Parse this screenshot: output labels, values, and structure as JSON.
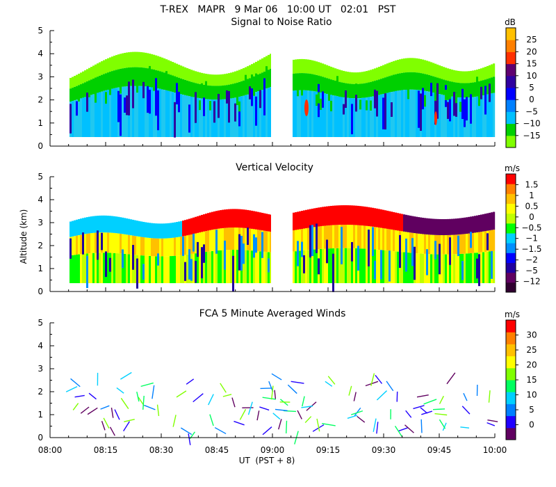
{
  "header": {
    "title": "T-REX   MAPR   9 Mar 06   10:00 UT   02:01   PST"
  },
  "colors": {
    "snr": [
      "#80ff00",
      "#00d000",
      "#00c0ff",
      "#0080ff",
      "#0000ff",
      "#3000a0",
      "#600070",
      "#ff3000",
      "#ff8000",
      "#ffc000"
    ],
    "vel": [
      "#300030",
      "#600060",
      "#2000a0",
      "#0000ff",
      "#0090ff",
      "#00d0ff",
      "#00ff00",
      "#c0ff00",
      "#ffff00",
      "#ffc000",
      "#ff8000",
      "#ff0000"
    ],
    "wind": [
      "#600060",
      "#2000ff",
      "#0080ff",
      "#00d0ff",
      "#00ff60",
      "#80ff00",
      "#ffff00",
      "#ffc000",
      "#ff8000",
      "#ff0000"
    ]
  },
  "chart_data": [
    {
      "type": "heatmap",
      "title": "Signal to Noise Ratio",
      "xlabel": "UT  (PST + 8)",
      "ylabel": "Altitude (km)",
      "x_ticks": [
        "08:00",
        "08:15",
        "08:30",
        "08:45",
        "09:00",
        "09:15",
        "09:30",
        "09:45",
        "10:00"
      ],
      "y_ticks": [
        "0",
        "1",
        "2",
        "3",
        "4",
        "5"
      ],
      "ylim": [
        0,
        5
      ],
      "colorbar": {
        "unit": "dB",
        "labels": [
          "25",
          "20",
          "15",
          "10",
          "5",
          "0",
          "−5",
          "−10",
          "−15"
        ]
      }
    },
    {
      "type": "heatmap",
      "title": "Vertical Velocity",
      "xlabel": "UT  (PST + 8)",
      "ylabel": "Altitude (km)",
      "x_ticks": [
        "08:00",
        "08:15",
        "08:30",
        "08:45",
        "09:00",
        "09:15",
        "09:30",
        "09:45",
        "10:00"
      ],
      "y_ticks": [
        "0",
        "1",
        "2",
        "3",
        "4",
        "5"
      ],
      "ylim": [
        0,
        5
      ],
      "colorbar": {
        "unit": "m/s",
        "labels": [
          "1.5",
          "1",
          "0.5",
          "0",
          "−0.5",
          "−1",
          "−1.5",
          "−2",
          "−5",
          "−12"
        ]
      }
    },
    {
      "type": "scatter",
      "title": "FCA 5 Minute Averaged Winds",
      "xlabel": "UT  (PST + 8)",
      "ylabel": "Altitude (km)",
      "x_ticks": [
        "08:00",
        "08:15",
        "08:30",
        "08:45",
        "09:00",
        "09:15",
        "09:30",
        "09:45",
        "10:00"
      ],
      "y_ticks": [
        "0",
        "1",
        "2",
        "3",
        "4",
        "5"
      ],
      "ylim": [
        0,
        5
      ],
      "colorbar": {
        "unit": "m/s",
        "labels": [
          "30",
          "25",
          "20",
          "15",
          "10",
          "5",
          "0"
        ]
      }
    }
  ],
  "xaxis": {
    "label": "UT  (PST + 8)"
  },
  "yaxis": {
    "label": "Altitude (km)"
  }
}
